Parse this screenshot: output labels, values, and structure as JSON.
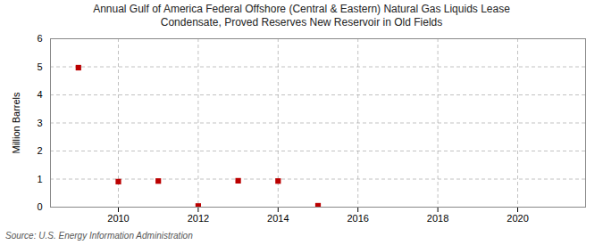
{
  "chart_data": {
    "type": "scatter",
    "title": "Annual Gulf of America Federal Offshore (Central & Eastern) Natural Gas Liquids Lease",
    "subtitle": "Condensate, Proved Reserves New Reservoir in Old Fields",
    "ylabel": "Million Barrels",
    "source": "Source: U.S. Energy Information Administration",
    "x": [
      2009,
      2010,
      2011,
      2012,
      2013,
      2014,
      2015
    ],
    "values": [
      4.97,
      0.91,
      0.93,
      0.04,
      0.94,
      0.93,
      0.05
    ],
    "color": "#bb0000",
    "marker": "square",
    "xlim": [
      2008.3,
      2021.7
    ],
    "xticks": [
      2010,
      2012,
      2014,
      2016,
      2018,
      2020
    ],
    "ylim": [
      0,
      6
    ],
    "yticks": [
      0,
      1,
      2,
      3,
      4,
      5,
      6
    ],
    "grid": true
  }
}
